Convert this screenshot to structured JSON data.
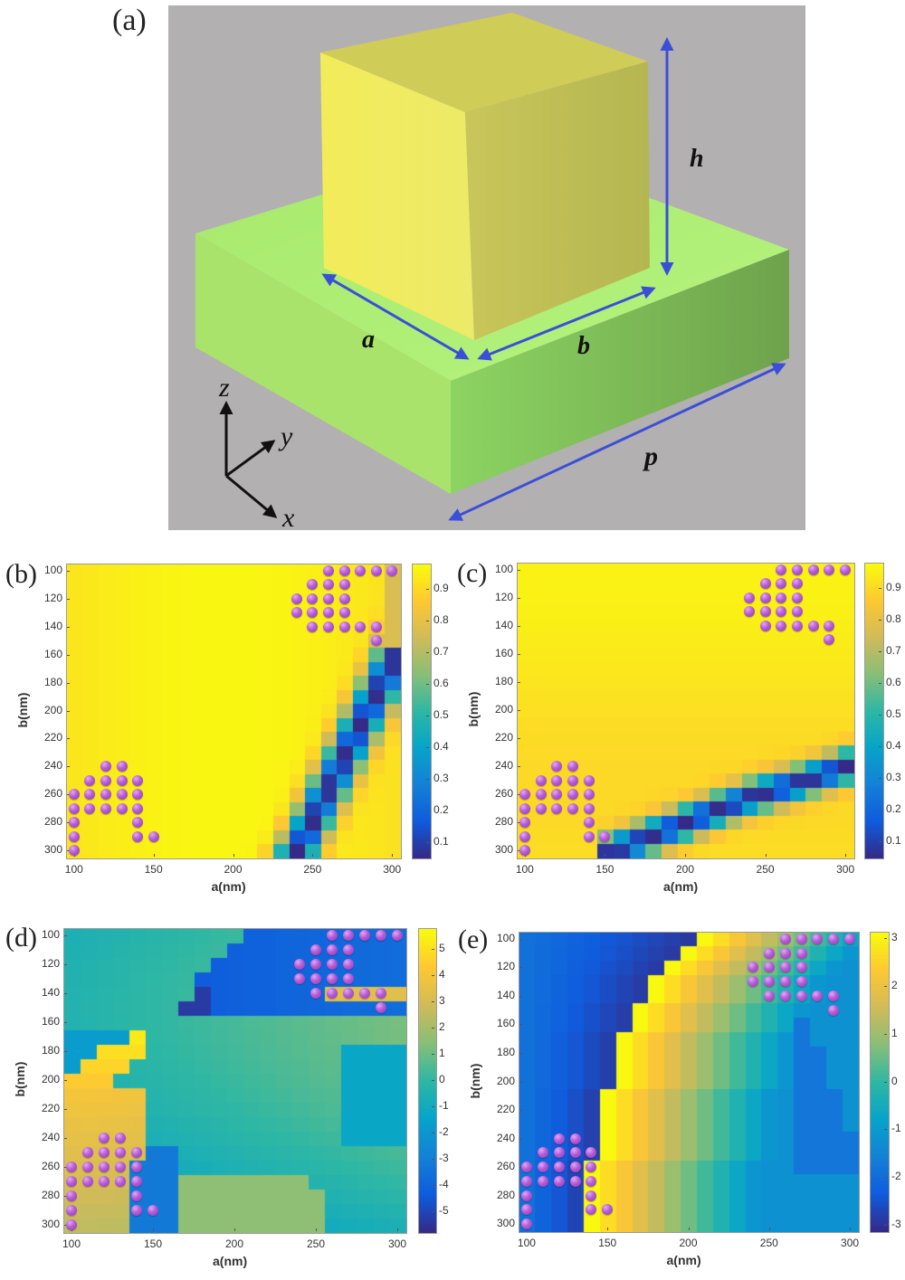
{
  "figure": {
    "panel_labels": [
      "(a)",
      "(b)",
      "(c)",
      "(d)",
      "(e)"
    ],
    "schematic": {
      "dimension_labels": {
        "h": "h",
        "a": "a",
        "b": "b",
        "p": "p"
      },
      "axes_labels": {
        "z": "z",
        "y": "y",
        "x": "x"
      },
      "colors": {
        "background": "#b3b0b1",
        "pillar": "#e6e35a",
        "substrate": "#a8e86a",
        "arrow": "#3b4fd6"
      }
    }
  },
  "colormap": {
    "name": "parula",
    "stops": [
      "#352a87",
      "#0f5cdd",
      "#1481d6",
      "#06a4ca",
      "#2eb7a4",
      "#87bf77",
      "#d1bb59",
      "#fec832",
      "#f9fb0e"
    ]
  },
  "dot_color": "#b55ad6",
  "chart_data": [
    {
      "id": "b",
      "type": "heatmap",
      "panel_label": "(b)",
      "xlabel": "a(nm)",
      "ylabel": "b(nm)",
      "x": [
        100,
        110,
        120,
        130,
        140,
        150,
        160,
        170,
        180,
        190,
        200,
        210,
        220,
        230,
        240,
        250,
        260,
        270,
        280,
        290,
        300
      ],
      "y": [
        100,
        110,
        120,
        130,
        140,
        150,
        160,
        170,
        180,
        190,
        200,
        210,
        220,
        230,
        240,
        250,
        260,
        270,
        280,
        290,
        300
      ],
      "xticks": [
        "100",
        "150",
        "200",
        "250",
        "300"
      ],
      "yticks": [
        "100",
        "120",
        "140",
        "160",
        "180",
        "200",
        "220",
        "240",
        "260",
        "280",
        "300"
      ],
      "clim": [
        0.05,
        0.98
      ],
      "colorbar_ticks": [
        "0.1",
        "0.2",
        "0.3",
        "0.4",
        "0.5",
        "0.6",
        "0.7",
        "0.8",
        "0.9"
      ],
      "colorbar_tick_values": [
        0.1,
        0.2,
        0.3,
        0.4,
        0.5,
        0.6,
        0.7,
        0.8,
        0.9
      ],
      "description": "Transmission amplitude, mostly ~0.9-0.98 with a resonance dip (min ~0.05) along a diagonal band from (300,165) to (240,300)",
      "band": {
        "orientation": "a_of_b",
        "points": [
          [
            165,
            300
          ],
          [
            200,
            270
          ],
          [
            230,
            260
          ],
          [
            270,
            246
          ],
          [
            300,
            240
          ]
        ],
        "width": 12,
        "min": 0.05,
        "base": 0.93
      }
    },
    {
      "id": "c",
      "type": "heatmap",
      "panel_label": "(c)",
      "xlabel": "a(nm)",
      "ylabel": "b(nm)",
      "x": [
        100,
        110,
        120,
        130,
        140,
        150,
        160,
        170,
        180,
        190,
        200,
        210,
        220,
        230,
        240,
        250,
        260,
        270,
        280,
        290,
        300
      ],
      "y": [
        100,
        110,
        120,
        130,
        140,
        150,
        160,
        170,
        180,
        190,
        200,
        210,
        220,
        230,
        240,
        250,
        260,
        270,
        280,
        290,
        300
      ],
      "xticks": [
        "100",
        "150",
        "200",
        "250",
        "300"
      ],
      "yticks": [
        "100",
        "120",
        "140",
        "160",
        "180",
        "200",
        "220",
        "240",
        "260",
        "280",
        "300"
      ],
      "clim": [
        0.05,
        0.98
      ],
      "colorbar_ticks": [
        "0.1",
        "0.2",
        "0.3",
        "0.4",
        "0.5",
        "0.6",
        "0.7",
        "0.8",
        "0.9"
      ],
      "colorbar_tick_values": [
        0.1,
        0.2,
        0.3,
        0.4,
        0.5,
        0.6,
        0.7,
        0.8,
        0.9
      ],
      "description": "Transmission amplitude, mostly ~0.9-0.98 with a resonance dip (min ~0.05) along a band from (170,300) to (300,240)",
      "band": {
        "orientation": "b_of_a",
        "points": [
          [
            165,
            300
          ],
          [
            200,
            280
          ],
          [
            240,
            262
          ],
          [
            270,
            252
          ],
          [
            300,
            240
          ]
        ],
        "width": 12,
        "min": 0.05,
        "base": 0.93
      }
    },
    {
      "id": "d",
      "type": "heatmap",
      "panel_label": "(d)",
      "xlabel": "a(nm)",
      "ylabel": "b(nm)",
      "x": [
        100,
        110,
        120,
        130,
        140,
        150,
        160,
        170,
        180,
        190,
        200,
        210,
        220,
        230,
        240,
        250,
        260,
        270,
        280,
        290,
        300
      ],
      "y": [
        100,
        110,
        120,
        130,
        140,
        150,
        160,
        170,
        180,
        190,
        200,
        210,
        220,
        230,
        240,
        250,
        260,
        270,
        280,
        290,
        300
      ],
      "xticks": [
        "100",
        "150",
        "200",
        "250",
        "300"
      ],
      "yticks": [
        "100",
        "120",
        "140",
        "160",
        "180",
        "200",
        "220",
        "240",
        "260",
        "280",
        "300"
      ],
      "clim": [
        -5.8,
        5.8
      ],
      "colorbar_ticks": [
        "5",
        "4",
        "3",
        "2",
        "1",
        "0",
        "-1",
        "-2",
        "-3",
        "-4",
        "-5"
      ],
      "colorbar_tick_values": [
        5,
        4,
        3,
        2,
        1,
        0,
        -1,
        -2,
        -3,
        -4,
        -5
      ],
      "description": "Phase (rad) map with wrapped discontinuities: high (3-5.5) region lower-left, low (-4 to -5.5) region upper-middle, ~0 elsewhere"
    },
    {
      "id": "e",
      "type": "heatmap",
      "panel_label": "(e)",
      "xlabel": "a(nm)",
      "ylabel": "b(nm)",
      "x": [
        100,
        110,
        120,
        130,
        140,
        150,
        160,
        170,
        180,
        190,
        200,
        210,
        220,
        230,
        240,
        250,
        260,
        270,
        280,
        290,
        300
      ],
      "y": [
        100,
        110,
        120,
        130,
        140,
        150,
        160,
        170,
        180,
        190,
        200,
        210,
        220,
        230,
        240,
        250,
        260,
        270,
        280,
        290,
        300
      ],
      "xticks": [
        "100",
        "150",
        "200",
        "250",
        "300"
      ],
      "yticks": [
        "100",
        "120",
        "140",
        "160",
        "180",
        "200",
        "220",
        "240",
        "260",
        "280",
        "300"
      ],
      "clim": [
        -3.14,
        3.14
      ],
      "colorbar_ticks": [
        "3",
        "2",
        "1",
        "0",
        "-1",
        "-2",
        "-3"
      ],
      "colorbar_tick_values": [
        3,
        2,
        1,
        0,
        -1,
        -2,
        -3
      ],
      "description": "Phase (rad) map: ~-2 to -3 on left, 2pi jump to ~+3 along stepped boundary, decreasing to ~0/-1 toward right, second jump near right edge",
      "jump_boundary_a_by_b": {
        "100": 210,
        "110": 200,
        "120": 190,
        "130": 180,
        "140": 180,
        "150": 170,
        "160": 170,
        "170": 160,
        "180": 160,
        "190": 160,
        "200": 160,
        "210": 150,
        "220": 150,
        "230": 150,
        "240": 150,
        "250": 150,
        "260": 140,
        "270": 140,
        "280": 140,
        "290": 140,
        "300": 140
      }
    }
  ],
  "selected_points": [
    [
      260,
      100
    ],
    [
      270,
      100
    ],
    [
      280,
      100
    ],
    [
      290,
      100
    ],
    [
      300,
      100
    ],
    [
      250,
      110
    ],
    [
      260,
      110
    ],
    [
      270,
      110
    ],
    [
      240,
      120
    ],
    [
      250,
      120
    ],
    [
      260,
      120
    ],
    [
      270,
      120
    ],
    [
      240,
      130
    ],
    [
      250,
      130
    ],
    [
      260,
      130
    ],
    [
      270,
      130
    ],
    [
      250,
      140
    ],
    [
      260,
      140
    ],
    [
      270,
      140
    ],
    [
      280,
      140
    ],
    [
      290,
      140
    ],
    [
      290,
      150
    ],
    [
      120,
      240
    ],
    [
      130,
      240
    ],
    [
      110,
      250
    ],
    [
      120,
      250
    ],
    [
      130,
      250
    ],
    [
      140,
      250
    ],
    [
      100,
      260
    ],
    [
      110,
      260
    ],
    [
      120,
      260
    ],
    [
      130,
      260
    ],
    [
      140,
      260
    ],
    [
      100,
      270
    ],
    [
      110,
      270
    ],
    [
      120,
      270
    ],
    [
      130,
      270
    ],
    [
      140,
      270
    ],
    [
      100,
      280
    ],
    [
      140,
      280
    ],
    [
      100,
      290
    ],
    [
      140,
      290
    ],
    [
      150,
      290
    ],
    [
      100,
      300
    ]
  ]
}
